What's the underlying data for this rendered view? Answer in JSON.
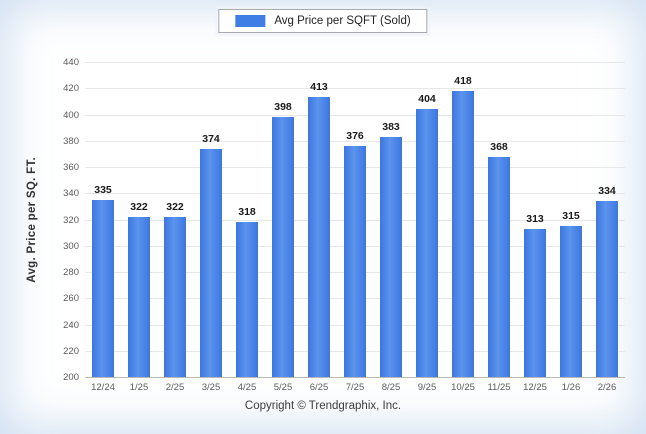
{
  "legend": {
    "label": "Avg Price per SQFT (Sold)",
    "swatch_color": "#3e7ee5"
  },
  "footer": {
    "copyright": "Copyright © Trendgraphix, Inc."
  },
  "chart_data": {
    "type": "bar",
    "title": "",
    "ylabel": "Avg. Price per SQ. FT.",
    "xlabel": "",
    "categories": [
      "12/24",
      "1/25",
      "2/25",
      "3/25",
      "4/25",
      "5/25",
      "6/25",
      "7/25",
      "8/25",
      "9/25",
      "10/25",
      "11/25",
      "12/25",
      "1/26",
      "2/26"
    ],
    "values": [
      335,
      322,
      322,
      374,
      318,
      398,
      413,
      376,
      383,
      404,
      418,
      368,
      313,
      315,
      334
    ],
    "ylim": [
      200,
      440
    ],
    "ytick_step": 20,
    "grid": true,
    "legend_position": "top",
    "bar_color": "#3e7ee5"
  }
}
